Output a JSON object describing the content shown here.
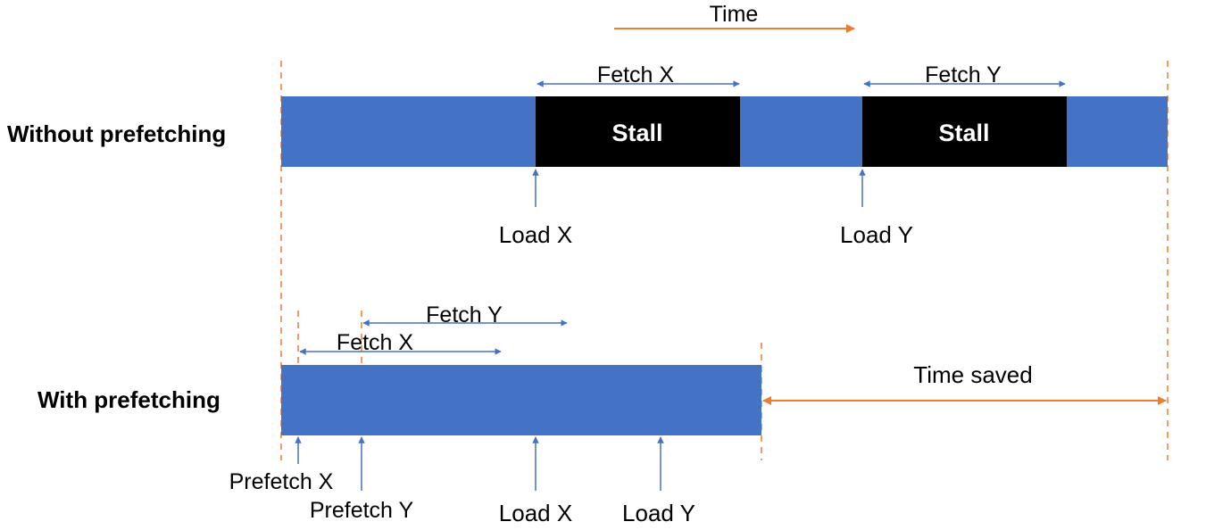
{
  "time_axis": {
    "label": "Time"
  },
  "rows": {
    "without": {
      "title": "Without prefetching",
      "intervals": [
        {
          "label": "Fetch X",
          "block_label": "Stall",
          "load_label": "Load X"
        },
        {
          "label": "Fetch Y",
          "block_label": "Stall",
          "load_label": "Load Y"
        }
      ]
    },
    "with": {
      "title": "With prefetching",
      "intervals": [
        {
          "label": "Fetch X",
          "prefetch_label": "Prefetch X"
        },
        {
          "label": "Fetch Y",
          "prefetch_label": "Prefetch Y"
        }
      ],
      "loads": [
        "Load X",
        "Load Y"
      ],
      "time_saved_label": "Time saved"
    }
  },
  "colors": {
    "bar": "#4472c4",
    "stall": "#000000",
    "marker": "#ed7d31",
    "arrow": "#4472c4",
    "text": "#000000"
  }
}
